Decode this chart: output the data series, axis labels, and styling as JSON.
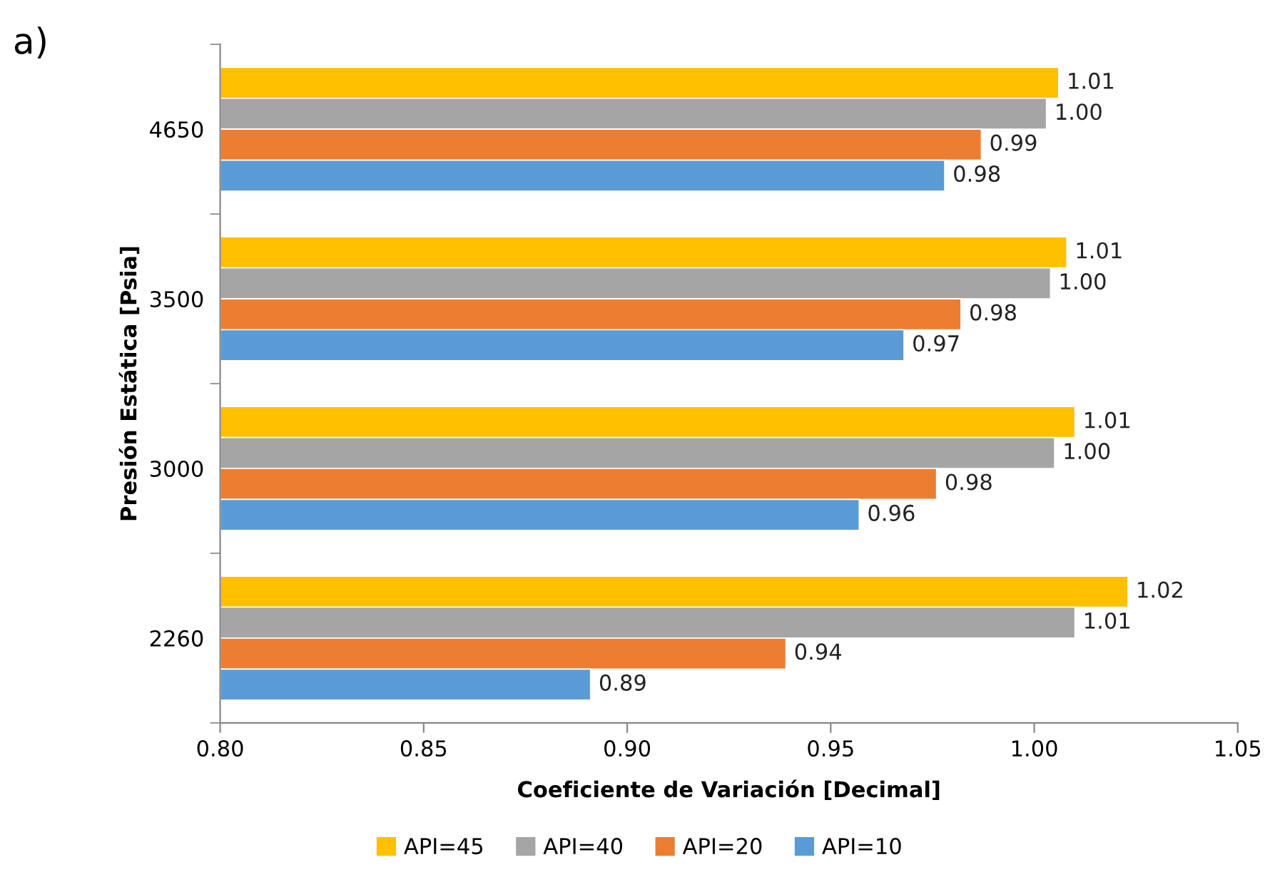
{
  "chart_data": {
    "type": "bar",
    "orientation": "horizontal",
    "xlabel": "Coeficiente de Variación [Decimal]",
    "ylabel": "Presión Estática [Psia]",
    "annotations": [
      "a)"
    ],
    "categories": [
      "4650",
      "3500",
      "3000",
      "2260"
    ],
    "series": [
      {
        "name": "API=45",
        "color": "#ffc000",
        "values": [
          1.006,
          1.008,
          1.01,
          1.023
        ],
        "value_labels": [
          "1.01",
          "1.01",
          "1.01",
          "1.02"
        ]
      },
      {
        "name": "API=40",
        "color": "#a5a5a5",
        "values": [
          1.003,
          1.004,
          1.005,
          1.01
        ],
        "value_labels": [
          "1.00",
          "1.00",
          "1.00",
          "1.01"
        ]
      },
      {
        "name": "API=20",
        "color": "#ed7d31",
        "values": [
          0.987,
          0.982,
          0.976,
          0.939
        ],
        "value_labels": [
          "0.99",
          "0.98",
          "0.98",
          "0.94"
        ]
      },
      {
        "name": "API=10",
        "color": "#5b9bd5",
        "values": [
          0.978,
          0.968,
          0.957,
          0.891
        ],
        "value_labels": [
          "0.98",
          "0.97",
          "0.96",
          "0.89"
        ]
      }
    ],
    "xlim": [
      0.8,
      1.05
    ],
    "xticks": [
      {
        "value": 0.8,
        "label": "0.80"
      },
      {
        "value": 0.85,
        "label": "0.85"
      },
      {
        "value": 0.9,
        "label": "0.90"
      },
      {
        "value": 0.95,
        "label": "0.95"
      },
      {
        "value": 1.0,
        "label": "1.00"
      },
      {
        "value": 1.05,
        "label": "1.05"
      }
    ],
    "grid": false,
    "legend": "bottom"
  }
}
